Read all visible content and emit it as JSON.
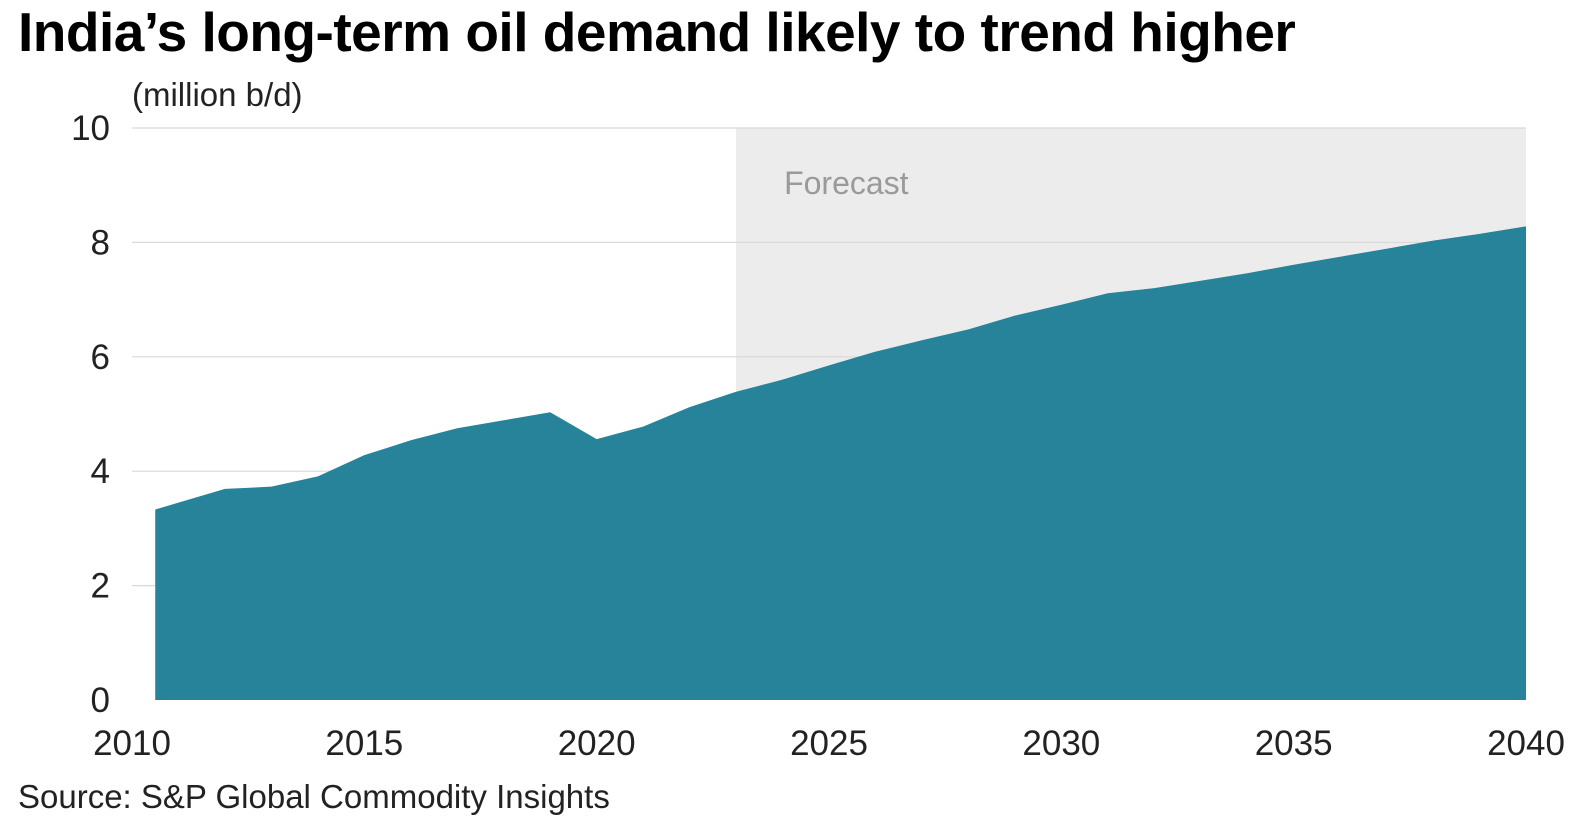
{
  "title": "India’s long-term oil demand likely to trend higher",
  "unit_label": "(million b/d)",
  "source": "Source: S&P Global Commodity Insights",
  "forecast_label": "Forecast",
  "colors": {
    "area": "#26839a",
    "forecast_band": "#ececec",
    "grid": "#d9d9d9"
  },
  "chart_data": {
    "type": "area",
    "title": "India’s long-term oil demand likely to trend higher",
    "ylabel": "(million b/d)",
    "xlabel": "",
    "ylim": [
      0,
      10
    ],
    "xlim": [
      2010,
      2040
    ],
    "y_ticks": [
      0,
      2,
      4,
      6,
      8,
      10
    ],
    "x_ticks": [
      2010,
      2015,
      2020,
      2025,
      2030,
      2035,
      2040
    ],
    "forecast_start": 2023,
    "grid": true,
    "x": [
      2010.5,
      2011,
      2012,
      2013,
      2014,
      2015,
      2016,
      2017,
      2018,
      2019,
      2020,
      2021,
      2022,
      2023,
      2024,
      2025,
      2026,
      2027,
      2028,
      2029,
      2030,
      2031,
      2032,
      2033,
      2034,
      2035,
      2036,
      2037,
      2038,
      2039,
      2040
    ],
    "series": [
      {
        "values": [
          3.33,
          3.45,
          3.69,
          3.73,
          3.91,
          4.28,
          4.54,
          4.75,
          4.89,
          5.03,
          4.56,
          4.78,
          5.12,
          5.39,
          5.6,
          5.85,
          6.09,
          6.29,
          6.48,
          6.72,
          6.91,
          7.11,
          7.2,
          7.33,
          7.46,
          7.61,
          7.75,
          7.89,
          8.03,
          8.15,
          8.28
        ]
      }
    ]
  }
}
